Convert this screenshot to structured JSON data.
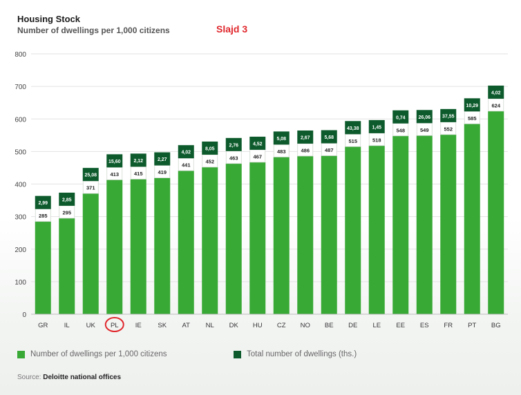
{
  "title": "Housing Stock",
  "subtitle": "Number of dwellings per 1,000 citizens",
  "slide_label": "Slajd 3",
  "source_prefix": "Source:",
  "source_name": "Deloitte national offices",
  "colors": {
    "bar": "#38a935",
    "dark": "#0d5b2c",
    "highlight": "#e0252a"
  },
  "chart_data": {
    "type": "bar",
    "title": "Housing Stock",
    "subtitle": "Number of dwellings per 1,000 citizens",
    "categories": [
      "GR",
      "IL",
      "UK",
      "PL",
      "IE",
      "SK",
      "AT",
      "NL",
      "DK",
      "HU",
      "CZ",
      "NO",
      "BE",
      "DE",
      "LE",
      "EE",
      "ES",
      "FR",
      "PT",
      "BG"
    ],
    "series": [
      {
        "name": "Number of dwellings per 1,000 citizens",
        "color": "#38a935",
        "values": [
          285,
          295,
          371,
          413,
          415,
          419,
          441,
          452,
          463,
          467,
          483,
          486,
          487,
          515,
          518,
          548,
          549,
          552,
          585,
          624
        ]
      },
      {
        "name": "Total number of dwellings (ths.)",
        "color": "#0d5b2c",
        "labels": [
          "2,99",
          "2,85",
          "25,08",
          "15,60",
          "2,12",
          "2,27",
          "4,02",
          "8,05",
          "2,76",
          "4,52",
          "5,08",
          "2,67",
          "5,68",
          "43,38",
          "1,45",
          "0,74",
          "26,06",
          "37,55",
          "10,29",
          "4,02"
        ]
      }
    ],
    "ylim": [
      0,
      800
    ],
    "yticks": [
      0,
      100,
      200,
      300,
      400,
      500,
      600,
      700,
      800
    ],
    "grid": true,
    "highlighted_category": "PL",
    "legend_position": "bottom"
  }
}
